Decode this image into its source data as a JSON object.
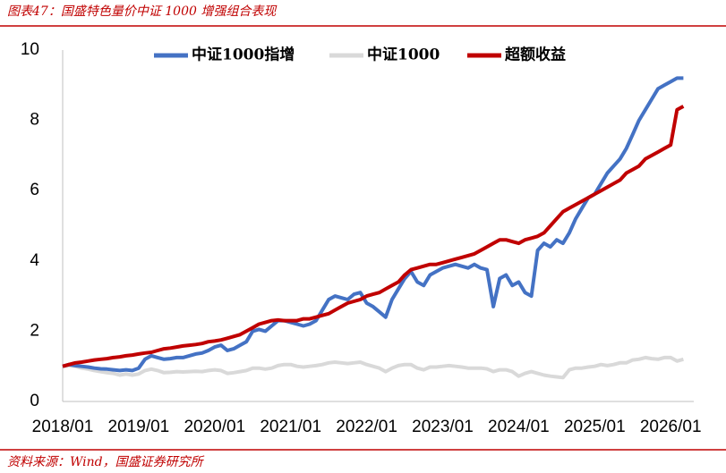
{
  "chart_data": {
    "type": "line",
    "title": "图表47：国盛特色量价中证 1000 增强组合表现",
    "source": "资料来源：Wind，国盛证券研究所",
    "x": [
      "2018/01",
      "2018/02",
      "2018/03",
      "2018/04",
      "2018/05",
      "2018/06",
      "2018/07",
      "2018/08",
      "2018/09",
      "2018/10",
      "2018/11",
      "2018/12",
      "2019/01",
      "2019/02",
      "2019/03",
      "2019/04",
      "2019/05",
      "2019/06",
      "2019/07",
      "2019/08",
      "2019/09",
      "2019/10",
      "2019/11",
      "2019/12",
      "2020/01",
      "2020/02",
      "2020/03",
      "2020/04",
      "2020/05",
      "2020/06",
      "2020/07",
      "2020/08",
      "2020/09",
      "2020/10",
      "2020/11",
      "2020/12",
      "2021/01",
      "2021/02",
      "2021/03",
      "2021/04",
      "2021/05",
      "2021/06",
      "2021/07",
      "2021/08",
      "2021/09",
      "2021/10",
      "2021/11",
      "2021/12",
      "2022/01",
      "2022/02",
      "2022/03",
      "2022/04",
      "2022/05",
      "2022/06",
      "2022/07",
      "2022/08",
      "2022/09",
      "2022/10",
      "2022/11",
      "2022/12",
      "2023/01",
      "2023/02",
      "2023/03",
      "2023/04",
      "2023/05",
      "2023/06",
      "2023/07",
      "2023/08",
      "2023/09",
      "2023/10",
      "2023/11",
      "2023/12",
      "2024/01",
      "2024/02",
      "2024/03",
      "2024/04",
      "2024/05",
      "2024/06",
      "2024/07",
      "2024/08",
      "2024/09",
      "2024/10",
      "2024/11",
      "2024/12",
      "2025/01",
      "2025/02",
      "2025/03",
      "2025/04",
      "2025/05",
      "2025/06",
      "2025/07",
      "2025/08",
      "2025/09",
      "2025/10",
      "2025/11",
      "2025/12",
      "2026/01",
      "2026/02",
      "2026/03"
    ],
    "xticks": [
      0,
      12,
      24,
      36,
      48,
      60,
      72,
      84,
      96
    ],
    "ylim": [
      0,
      10
    ],
    "yticks": [
      0,
      2,
      4,
      6,
      8,
      10
    ],
    "grid": false,
    "series": [
      {
        "name": "中证1000",
        "color": "#d9d9d9",
        "values": [
          1.0,
          1.02,
          1.0,
          0.95,
          0.92,
          0.88,
          0.85,
          0.82,
          0.8,
          0.75,
          0.78,
          0.75,
          0.78,
          0.88,
          0.92,
          0.88,
          0.82,
          0.83,
          0.85,
          0.84,
          0.85,
          0.86,
          0.85,
          0.88,
          0.9,
          0.88,
          0.8,
          0.82,
          0.85,
          0.88,
          0.95,
          0.95,
          0.92,
          0.95,
          1.02,
          1.05,
          1.05,
          1.0,
          0.98,
          1.0,
          1.02,
          1.05,
          1.1,
          1.12,
          1.1,
          1.08,
          1.1,
          1.12,
          1.05,
          1.0,
          0.95,
          0.85,
          0.95,
          1.02,
          1.05,
          1.05,
          0.95,
          0.9,
          0.98,
          0.98,
          1.0,
          1.02,
          1.0,
          0.98,
          0.95,
          0.95,
          0.95,
          0.93,
          0.85,
          0.9,
          0.9,
          0.85,
          0.72,
          0.8,
          0.85,
          0.8,
          0.75,
          0.72,
          0.7,
          0.68,
          0.9,
          0.95,
          0.95,
          0.98,
          1.0,
          1.05,
          1.02,
          1.05,
          1.1,
          1.1,
          1.18,
          1.2,
          1.25,
          1.22,
          1.2,
          1.25,
          1.25,
          1.15,
          1.2
        ]
      },
      {
        "name": "中证1000指增",
        "color": "#4472c4",
        "values": [
          1.0,
          1.05,
          1.02,
          1.0,
          0.98,
          0.95,
          0.93,
          0.92,
          0.9,
          0.88,
          0.9,
          0.88,
          0.95,
          1.2,
          1.3,
          1.25,
          1.2,
          1.22,
          1.25,
          1.25,
          1.3,
          1.35,
          1.38,
          1.45,
          1.55,
          1.6,
          1.45,
          1.5,
          1.6,
          1.7,
          2.0,
          2.05,
          2.0,
          2.15,
          2.3,
          2.3,
          2.25,
          2.2,
          2.15,
          2.2,
          2.3,
          2.6,
          2.9,
          3.0,
          2.95,
          2.9,
          3.05,
          3.1,
          2.8,
          2.7,
          2.55,
          2.4,
          2.9,
          3.2,
          3.5,
          3.7,
          3.4,
          3.3,
          3.6,
          3.7,
          3.8,
          3.85,
          3.9,
          3.85,
          3.8,
          3.9,
          3.8,
          3.75,
          2.7,
          3.5,
          3.6,
          3.3,
          3.4,
          3.1,
          3.0,
          4.3,
          4.5,
          4.4,
          4.6,
          4.5,
          4.8,
          5.2,
          5.5,
          5.8,
          5.9,
          6.2,
          6.5,
          6.7,
          6.9,
          7.2,
          7.6,
          8.0,
          8.3,
          8.6,
          8.9,
          9.0,
          9.1,
          9.2,
          9.2
        ]
      },
      {
        "name": "超额收益",
        "color": "#c00000",
        "values": [
          1.0,
          1.05,
          1.1,
          1.12,
          1.15,
          1.18,
          1.2,
          1.22,
          1.25,
          1.27,
          1.3,
          1.32,
          1.35,
          1.38,
          1.4,
          1.45,
          1.5,
          1.52,
          1.55,
          1.58,
          1.6,
          1.62,
          1.65,
          1.7,
          1.72,
          1.75,
          1.8,
          1.85,
          1.9,
          2.0,
          2.1,
          2.2,
          2.25,
          2.3,
          2.32,
          2.3,
          2.3,
          2.3,
          2.35,
          2.35,
          2.4,
          2.45,
          2.5,
          2.6,
          2.7,
          2.8,
          2.85,
          2.9,
          3.0,
          3.05,
          3.1,
          3.2,
          3.3,
          3.4,
          3.6,
          3.75,
          3.8,
          3.85,
          3.9,
          3.9,
          3.95,
          4.0,
          4.05,
          4.1,
          4.15,
          4.2,
          4.3,
          4.4,
          4.5,
          4.6,
          4.6,
          4.55,
          4.5,
          4.6,
          4.65,
          4.7,
          4.8,
          5.0,
          5.2,
          5.4,
          5.5,
          5.6,
          5.7,
          5.8,
          5.9,
          6.0,
          6.1,
          6.2,
          6.3,
          6.5,
          6.6,
          6.7,
          6.9,
          7.0,
          7.1,
          7.2,
          7.3,
          8.3,
          8.4
        ]
      }
    ]
  }
}
